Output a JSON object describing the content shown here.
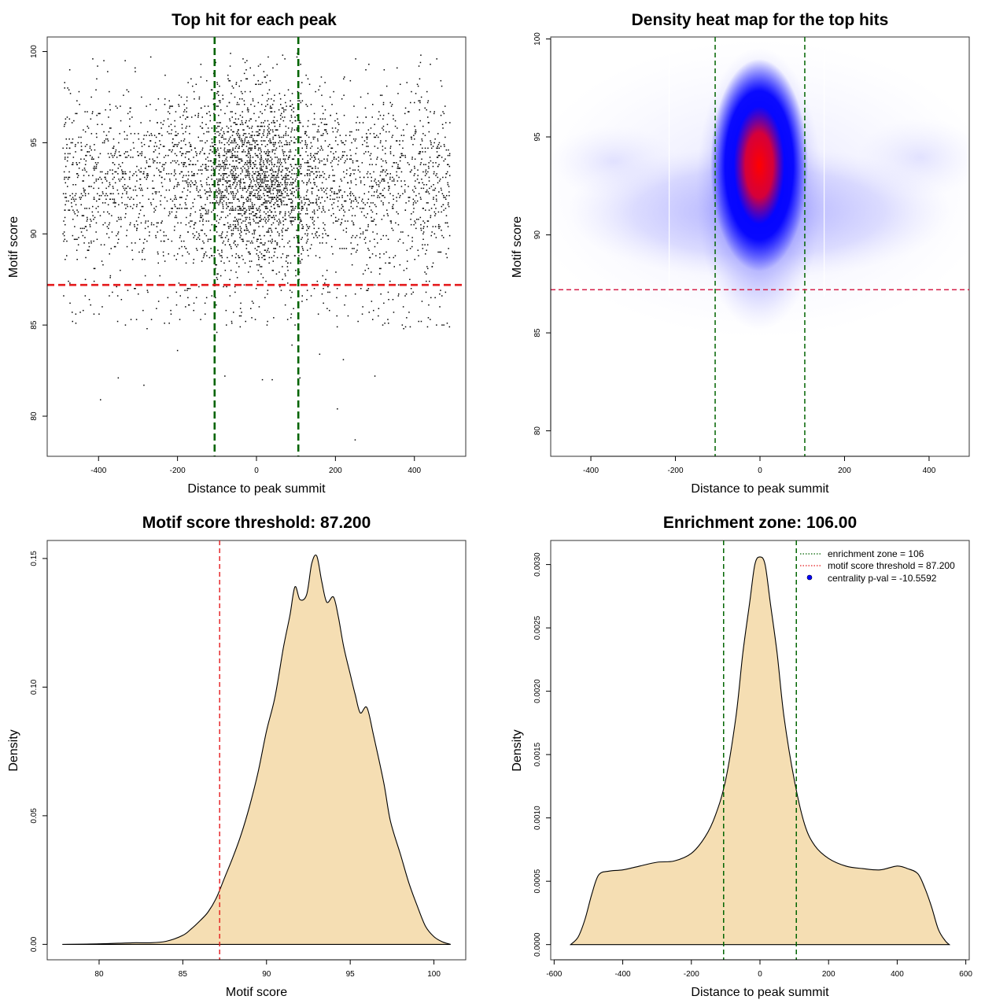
{
  "colors": {
    "point": "#000000",
    "zone_line": "#006400",
    "threshold_line": "#e41a1c",
    "threshold_line_heatmap": "#d6204a",
    "density_fill": "#f5deb3",
    "heat_low": "#e8e8ff",
    "heat_mid": "#0000ff",
    "heat_high": "#ff0000",
    "legend_dot": "#0000ff"
  },
  "chart_data": [
    {
      "type": "scatter",
      "title": "Top hit for each peak",
      "xlabel": "Distance to peak summit",
      "ylabel": "Motif score",
      "xlim": [
        -530,
        530
      ],
      "ylim": [
        77.8,
        100.8
      ],
      "xticks": [
        -400,
        -200,
        0,
        200,
        400
      ],
      "yticks": [
        80,
        85,
        90,
        95,
        100
      ],
      "grid": false,
      "vlines": [
        -106,
        106
      ],
      "hline": 87.2,
      "points_description_x_range": [
        -490,
        490
      ],
      "points_main_score_range": [
        86,
        100
      ],
      "outliers": [
        [
          -395,
          80.9
        ],
        [
          -350,
          82.1
        ],
        [
          -285,
          81.7
        ],
        [
          -80,
          82.2
        ],
        [
          15,
          82.0
        ],
        [
          40,
          82.0
        ],
        [
          110,
          82.1
        ],
        [
          205,
          80.4
        ],
        [
          250,
          78.7
        ],
        [
          300,
          82.2
        ],
        [
          -200,
          83.6
        ],
        [
          160,
          83.4
        ],
        [
          220,
          83.1
        ],
        [
          90,
          83.9
        ]
      ]
    },
    {
      "type": "heatmap",
      "title": "Density heat map for the top hits",
      "xlabel": "Distance to peak summit",
      "ylabel": "Motif score",
      "xlim": [
        -495,
        495
      ],
      "ylim": [
        78.7,
        100.1
      ],
      "xticks": [
        -400,
        -200,
        0,
        200,
        400
      ],
      "yticks": [
        80,
        85,
        90,
        95,
        100
      ],
      "vlines": [
        -106,
        106
      ],
      "hline": 87.2,
      "peak": {
        "x": 5,
        "y": 93
      }
    },
    {
      "type": "area",
      "title": "Motif score threshold: 87.200",
      "xlabel": "Motif score",
      "ylabel": "Density",
      "xlim": [
        76.9,
        101.9
      ],
      "ylim": [
        -0.006,
        0.157
      ],
      "xticks": [
        80,
        85,
        90,
        95,
        100
      ],
      "yticks": [
        0.0,
        0.05,
        0.1,
        0.15
      ],
      "ytick_labels": [
        "0.00",
        "0.05",
        "0.10",
        "0.15"
      ],
      "vline": 87.2,
      "x": [
        77.8,
        80,
        82,
        83,
        84,
        85,
        85.5,
        86,
        86.5,
        87,
        87.5,
        88,
        88.5,
        89,
        89.5,
        90,
        90.5,
        91,
        91.4,
        91.7,
        92,
        92.4,
        92.7,
        93,
        93.3,
        93.6,
        94,
        94.3,
        94.6,
        95,
        95.3,
        95.6,
        96,
        96.4,
        97,
        97.4,
        98,
        98.5,
        99,
        99.5,
        100,
        100.5,
        101
      ],
      "y": [
        0.0,
        0.0002,
        0.0006,
        0.0006,
        0.0012,
        0.0035,
        0.006,
        0.009,
        0.0125,
        0.018,
        0.026,
        0.034,
        0.043,
        0.054,
        0.067,
        0.083,
        0.096,
        0.115,
        0.128,
        0.139,
        0.134,
        0.136,
        0.148,
        0.151,
        0.141,
        0.133,
        0.135,
        0.127,
        0.116,
        0.105,
        0.097,
        0.09,
        0.092,
        0.081,
        0.063,
        0.048,
        0.035,
        0.024,
        0.015,
        0.007,
        0.003,
        0.001,
        0.0
      ]
    },
    {
      "type": "area",
      "title": "Enrichment zone: 106.00",
      "xlabel": "Distance to peak summit",
      "ylabel": "Density",
      "xlim": [
        -610,
        610
      ],
      "ylim": [
        -0.00012,
        0.00319
      ],
      "xticks": [
        -600,
        -400,
        -200,
        0,
        200,
        400,
        600
      ],
      "yticks": [
        0.0,
        0.0005,
        0.001,
        0.0015,
        0.002,
        0.0025,
        0.003
      ],
      "ytick_labels": [
        "0.0000",
        "0.0005",
        "0.0010",
        "0.0015",
        "0.0020",
        "0.0025",
        "0.0030"
      ],
      "vlines": [
        -106,
        106
      ],
      "x": [
        -552,
        -530,
        -510,
        -490,
        -470,
        -440,
        -400,
        -350,
        -300,
        -250,
        -200,
        -160,
        -130,
        -100,
        -70,
        -50,
        -30,
        -15,
        0,
        15,
        30,
        50,
        70,
        100,
        130,
        160,
        200,
        250,
        300,
        350,
        400,
        430,
        460,
        480,
        500,
        520,
        540,
        552
      ],
      "y": [
        0.0,
        6e-05,
        0.0002,
        0.0004,
        0.00055,
        0.00058,
        0.00059,
        0.00062,
        0.00065,
        0.00066,
        0.00072,
        0.00085,
        0.00102,
        0.0013,
        0.0018,
        0.0023,
        0.0027,
        0.003,
        0.00306,
        0.003,
        0.0027,
        0.0023,
        0.0018,
        0.0013,
        0.00095,
        0.00078,
        0.00068,
        0.00062,
        0.0006,
        0.00059,
        0.00062,
        0.0006,
        0.00056,
        0.00045,
        0.0003,
        0.00012,
        3e-05,
        0.0
      ],
      "legend": {
        "position": "top-right",
        "entries": [
          {
            "label": "enrichment zone = 106",
            "style": "dotted-green"
          },
          {
            "label": "motif score threshold = 87.200",
            "style": "dotted-red"
          },
          {
            "label": "centrality p-val = -10.5592",
            "style": "blue-dot"
          }
        ]
      }
    }
  ]
}
